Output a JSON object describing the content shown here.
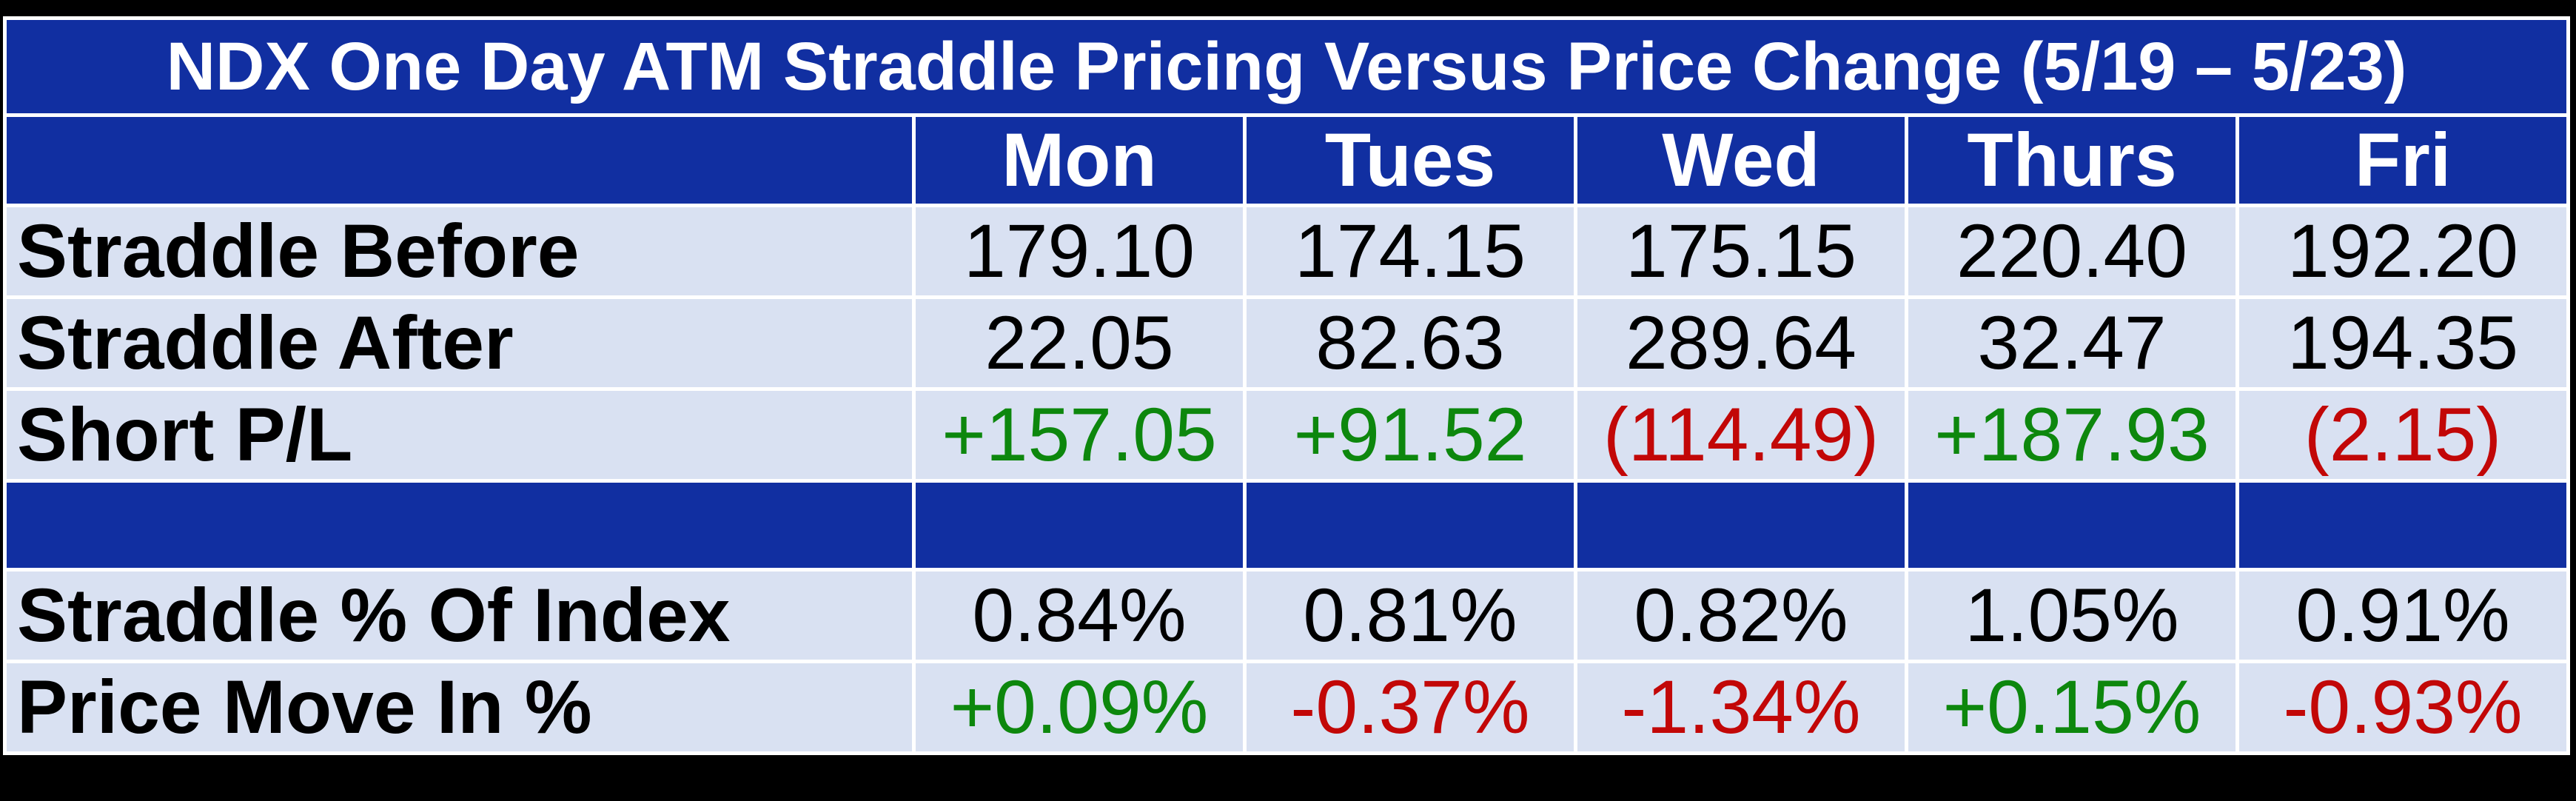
{
  "colors": {
    "header_bg": "#112FA1",
    "row_bg": "#D9E1F2",
    "grid_lines": "#FFFFFF",
    "positive": "#0D870D",
    "negative": "#C20707",
    "header_text": "#FFFFFF",
    "body_text": "#000000",
    "frame_bg": "#000000"
  },
  "table": {
    "title": "NDX One Day ATM Straddle Pricing Versus Price Change (5/19 – 5/23)",
    "corner_label": "",
    "day_headers": [
      "Mon",
      "Tues",
      "Wed",
      "Thurs",
      "Fri"
    ],
    "rows": [
      {
        "label": "Straddle Before",
        "type": "data",
        "values": [
          "179.10",
          "174.15",
          "175.15",
          "220.40",
          "192.20"
        ],
        "value_colors": [
          "dark",
          "dark",
          "dark",
          "dark",
          "dark"
        ]
      },
      {
        "label": "Straddle After",
        "type": "data",
        "values": [
          "22.05",
          "82.63",
          "289.64",
          "32.47",
          "194.35"
        ],
        "value_colors": [
          "dark",
          "dark",
          "dark",
          "dark",
          "dark"
        ]
      },
      {
        "label": "Short P/L",
        "type": "data",
        "values": [
          "+157.05",
          "+91.52",
          "(114.49)",
          "+187.93",
          "(2.15)"
        ],
        "value_colors": [
          "positive",
          "positive",
          "negative",
          "positive",
          "negative"
        ]
      },
      {
        "label": "",
        "type": "spacer",
        "values": [
          "",
          "",
          "",
          "",
          ""
        ],
        "value_colors": [
          "dark",
          "dark",
          "dark",
          "dark",
          "dark"
        ]
      },
      {
        "label": "Straddle % Of Index",
        "type": "data",
        "values": [
          "0.84%",
          "0.81%",
          "0.82%",
          "1.05%",
          "0.91%"
        ],
        "value_colors": [
          "dark",
          "dark",
          "dark",
          "dark",
          "dark"
        ]
      },
      {
        "label": "Price Move In %",
        "type": "data",
        "values": [
          "+0.09%",
          "-0.37%",
          "-1.34%",
          "+0.15%",
          "-0.93%"
        ],
        "value_colors": [
          "positive",
          "negative",
          "negative",
          "positive",
          "negative"
        ]
      }
    ]
  },
  "chart_data": {
    "type": "table",
    "title": "NDX One Day ATM Straddle Pricing Versus Price Change (5/19 – 5/23)",
    "categories": [
      "Mon",
      "Tues",
      "Wed",
      "Thurs",
      "Fri"
    ],
    "series": [
      {
        "name": "Straddle Before",
        "values": [
          179.1,
          174.15,
          175.15,
          220.4,
          192.2
        ]
      },
      {
        "name": "Straddle After",
        "values": [
          22.05,
          82.63,
          289.64,
          32.47,
          194.35
        ]
      },
      {
        "name": "Short P/L",
        "values": [
          157.05,
          91.52,
          -114.49,
          187.93,
          -2.15
        ]
      },
      {
        "name": "Straddle % Of Index",
        "values": [
          0.84,
          0.81,
          0.82,
          1.05,
          0.91
        ],
        "unit": "%"
      },
      {
        "name": "Price Move In %",
        "values": [
          0.09,
          -0.37,
          -1.34,
          0.15,
          -0.93
        ],
        "unit": "%"
      }
    ],
    "layout_hints": {
      "legend_position": "none",
      "grid": "white cell separators",
      "notes": "negative Short P/L shown in accounting parentheses and red; positive values prefixed with + and shown in green"
    }
  }
}
